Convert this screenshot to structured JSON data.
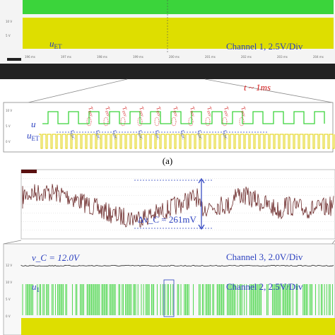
{
  "top_panel": {
    "channel_label": "Channel 1, 2.5V/Div",
    "trace_label": {
      "main": "u",
      "sub": "ET"
    },
    "y_labels": [
      "10 V",
      "5 V"
    ],
    "time_labels": [
      "196 ms",
      "197 ms",
      "198 ms",
      "199 ms",
      "200 ms",
      "201 ms",
      "202 ms",
      "203 ms",
      "204 ms"
    ]
  },
  "zoom_label": "t ~ 1ms",
  "zoom_panel": {
    "y_labels": [
      "10 V",
      "5 V",
      "0 V"
    ],
    "u_label": "u",
    "uet_label": {
      "main": "u",
      "sub": "ET"
    },
    "t_inv": {
      "main": "T",
      "sub": "INV"
    },
    "t_adc": {
      "main": "t",
      "sub": "ADC"
    }
  },
  "caption": "(a)",
  "ripple_panel": {
    "delta_label": "Δv_C = 261mV"
  },
  "bottom_panel": {
    "vc_label": "v_C = 12.0V",
    "channel3_label": "Channel 3, 2.0V/Div",
    "channel2_label": "Channel 2, 2.5V/Div",
    "u_label": {
      "main": "u",
      "sub": "1"
    },
    "y_labels": [
      "12 V",
      "10 V",
      "5 V",
      "0 V"
    ]
  }
}
